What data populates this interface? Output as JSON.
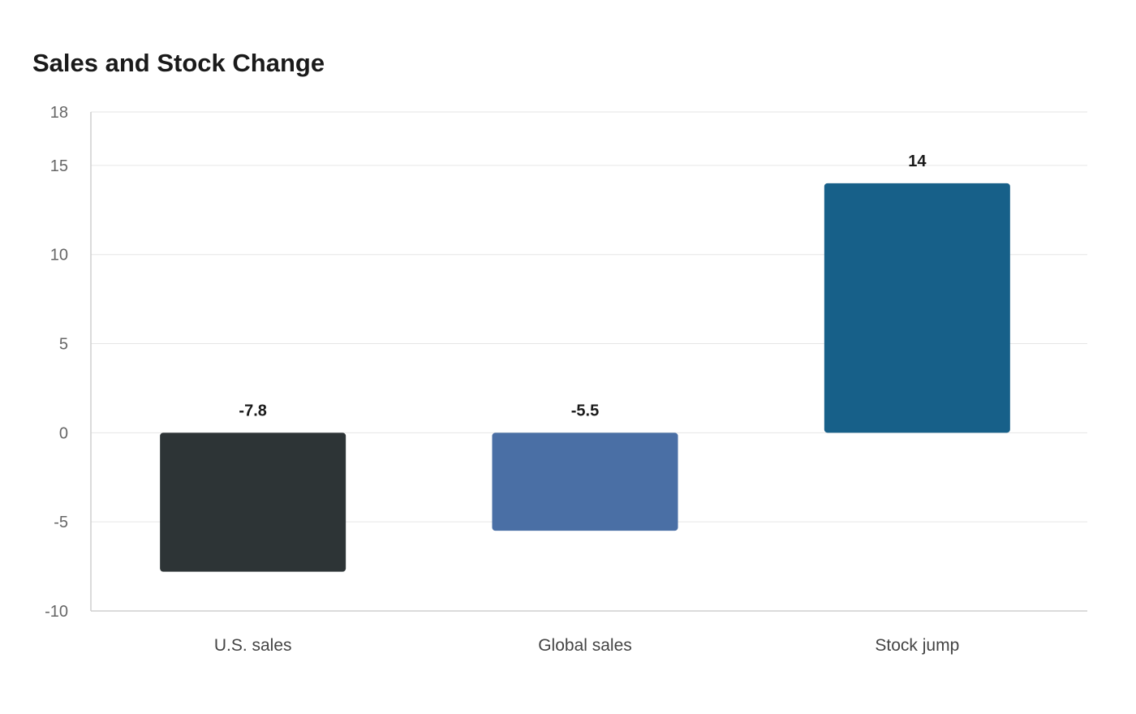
{
  "chart_data": {
    "type": "bar",
    "title": "Sales and Stock Change",
    "categories": [
      "U.S. sales",
      "Global sales",
      "Stock jump"
    ],
    "values": [
      -7.8,
      -5.5,
      14
    ],
    "data_labels": [
      "-7.8",
      "-5.5",
      "14"
    ],
    "colors": [
      "#2d3436",
      "#4a6fa5",
      "#176089"
    ],
    "ylim": [
      -10,
      18
    ],
    "yticks": [
      -10,
      -5,
      0,
      5,
      10,
      15,
      18
    ],
    "ytick_labels": [
      "-10",
      "-5",
      "0",
      "5",
      "10",
      "15",
      "18"
    ],
    "xlabel": "",
    "ylabel": "",
    "grid": true,
    "legend": false
  }
}
